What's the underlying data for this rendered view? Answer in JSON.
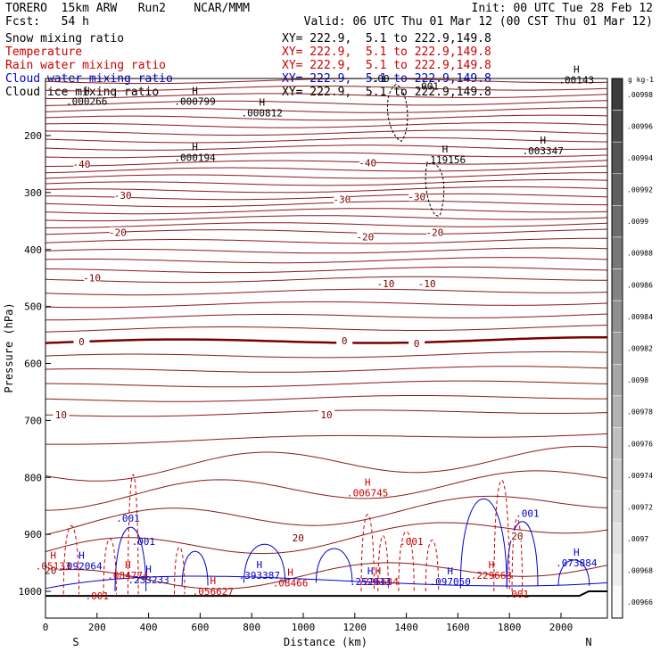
{
  "header": {
    "model": "TORERO  15km ARW   Run2    NCAR/MMM",
    "init": "Init: 00 UTC Tue 28 Feb 12",
    "fcst": "Fcst:   54 h",
    "valid": "Valid: 06 UTC Thu 01 Mar 12 (00 CST Thu 01 Mar 12)"
  },
  "legend": [
    {
      "name": "Snow mixing ratio",
      "xy": "XY= 222.9,  5.1 to 222.9,149.8",
      "color": "#000000"
    },
    {
      "name": "Temperature",
      "xy": "XY= 222.9,  5.1 to 222.9,149.8",
      "color": "#cc0000"
    },
    {
      "name": "Rain water mixing ratio",
      "xy": "XY= 222.9,  5.1 to 222.9,149.8",
      "color": "#cc0000"
    },
    {
      "name": "Cloud water mixing ratio",
      "xy": "XY= 222.9,  5.1 to 222.9,149.8",
      "color": "#0000cc"
    },
    {
      "name": "Cloud ice mixing ratio",
      "xy": "XY= 222.9,  5.1 to 222.9,149.8",
      "color": "#000000"
    }
  ],
  "chart_data": {
    "type": "line",
    "title": "Vertical cross section",
    "xlabel": "Distance (km)",
    "ylabel": "Pressure (hPa)",
    "xlim": [
      0,
      2180
    ],
    "ylim": [
      1050,
      90
    ],
    "x_ticks": [
      0,
      200,
      400,
      600,
      800,
      1000,
      1200,
      1400,
      1600,
      1800,
      2000
    ],
    "y_ticks": [
      200,
      300,
      400,
      500,
      600,
      700,
      800,
      900,
      1000
    ],
    "x_end_labels": {
      "left": "S",
      "right": "N"
    },
    "isotherms": [
      {
        "label": "-40",
        "p_left": 250,
        "p_right": 245
      },
      {
        "label": "-30",
        "p_left": 310,
        "p_right": 305
      },
      {
        "label": "-20",
        "p_left": 370,
        "p_right": 368
      },
      {
        "label": "-10",
        "p_left": 455,
        "p_right": 450
      },
      {
        "label": "0",
        "p_left": 563,
        "p_right": 558,
        "bold": true
      },
      {
        "label": "10",
        "p_left": 690,
        "p_right": 683
      },
      {
        "label": "20",
        "p_left": 935,
        "p_right": 880
      }
    ],
    "temperature_labels": [
      {
        "text": "-40",
        "x": 140,
        "p": 250
      },
      {
        "text": "-40",
        "x": 1250,
        "p": 248
      },
      {
        "text": "-30",
        "x": 300,
        "p": 305
      },
      {
        "text": "-30",
        "x": 1150,
        "p": 312
      },
      {
        "text": "-30",
        "x": 1440,
        "p": 307
      },
      {
        "text": "-20",
        "x": 280,
        "p": 370
      },
      {
        "text": "-20",
        "x": 1240,
        "p": 378
      },
      {
        "text": "-20",
        "x": 1510,
        "p": 370
      },
      {
        "text": "-10",
        "x": 180,
        "p": 450
      },
      {
        "text": "-10",
        "x": 1320,
        "p": 460
      },
      {
        "text": "-10",
        "x": 1480,
        "p": 460
      },
      {
        "text": "0",
        "x": 140,
        "p": 562
      },
      {
        "text": "0",
        "x": 1160,
        "p": 560
      },
      {
        "text": "0",
        "x": 1440,
        "p": 565
      },
      {
        "text": "10",
        "x": 60,
        "p": 690
      },
      {
        "text": "10",
        "x": 1090,
        "p": 690
      },
      {
        "text": "20",
        "x": 20,
        "p": 963
      },
      {
        "text": "20",
        "x": 980,
        "p": 906
      },
      {
        "text": "20",
        "x": 1830,
        "p": 903
      }
    ],
    "extrema": [
      {
        "mark": "H",
        "value": ".000266",
        "x": 160,
        "p": 140,
        "color": "#000000"
      },
      {
        "mark": "H",
        "value": ".000799",
        "x": 580,
        "p": 140,
        "color": "#000000"
      },
      {
        "mark": "H",
        "value": ".000812",
        "x": 840,
        "p": 160,
        "color": "#000000"
      },
      {
        "mark": "H",
        "value": ".000194",
        "x": 580,
        "p": 238,
        "color": "#000000"
      },
      {
        "mark": "H",
        "value": ".00143",
        "x": 2060,
        "p": 102,
        "color": "#000000"
      },
      {
        "mark": "H",
        "value": ".003347",
        "x": 1930,
        "p": 227,
        "color": "#000000"
      },
      {
        "mark": "H",
        "value": ".119156",
        "x": 1550,
        "p": 242,
        "color": "#000000"
      },
      {
        "mark": "H",
        "value": ".006745",
        "x": 1250,
        "p": 827,
        "color": "#cc0000"
      },
      {
        "mark": "H",
        "value": ".05133",
        "x": 30,
        "p": 955,
        "color": "#cc0000"
      },
      {
        "mark": "H",
        "value": ".084774",
        "x": 320,
        "p": 972,
        "color": "#cc0000"
      },
      {
        "mark": "H",
        "value": ".056627",
        "x": 650,
        "p": 1000,
        "color": "#cc0000"
      },
      {
        "mark": "H",
        "value": ".08466",
        "x": 950,
        "p": 985,
        "color": "#cc0000"
      },
      {
        "mark": "H",
        "value": ".226634",
        "x": 1290,
        "p": 983,
        "color": "#cc0000"
      },
      {
        "mark": "H",
        "value": ".229663",
        "x": 1730,
        "p": 972,
        "color": "#cc0000"
      },
      {
        "mark": "H",
        "value": ".092064",
        "x": 140,
        "p": 955,
        "color": "#0000cc"
      },
      {
        "mark": "H",
        "value": ".233233",
        "x": 400,
        "p": 980,
        "color": "#0000cc"
      },
      {
        "mark": "H",
        "value": ".393387",
        "x": 830,
        "p": 972,
        "color": "#0000cc"
      },
      {
        "mark": "H",
        "value": ".252033",
        "x": 1260,
        "p": 983,
        "color": "#0000cc"
      },
      {
        "mark": "H",
        "value": ".097050",
        "x": 1570,
        "p": 983,
        "color": "#0000cc"
      },
      {
        "mark": "H",
        "value": ".073884",
        "x": 2060,
        "p": 950,
        "color": "#0000cc"
      }
    ],
    "contour_labels": [
      {
        "text": ".001",
        "x": 320,
        "p": 872,
        "color": "#0000cc"
      },
      {
        "text": ".001",
        "x": 380,
        "p": 912,
        "color": "#0000cc"
      },
      {
        "text": ".001",
        "x": 1870,
        "p": 863,
        "color": "#0000cc"
      },
      {
        "text": ".001",
        "x": 1420,
        "p": 912,
        "color": "#cc0000"
      },
      {
        "text": ".001",
        "x": 200,
        "p": 1008,
        "color": "#cc0000"
      },
      {
        "text": ".001",
        "x": 1830,
        "p": 1005,
        "color": "#cc0000"
      },
      {
        "text": ".001",
        "x": 1480,
        "p": 113,
        "color": "#000000"
      },
      {
        "text": ".00",
        "x": 1300,
        "p": 100,
        "color": "#000000"
      }
    ],
    "colorbar": {
      "unit": "g kg-1",
      "ticks": [
        ".00998",
        ".00996",
        ".00994",
        ".00992",
        ".0099",
        ".00988",
        ".00986",
        ".00984",
        ".00982",
        ".0098",
        ".00978",
        ".00976",
        ".00974",
        ".00972",
        ".0097",
        ".00968",
        ".00966"
      ]
    }
  }
}
